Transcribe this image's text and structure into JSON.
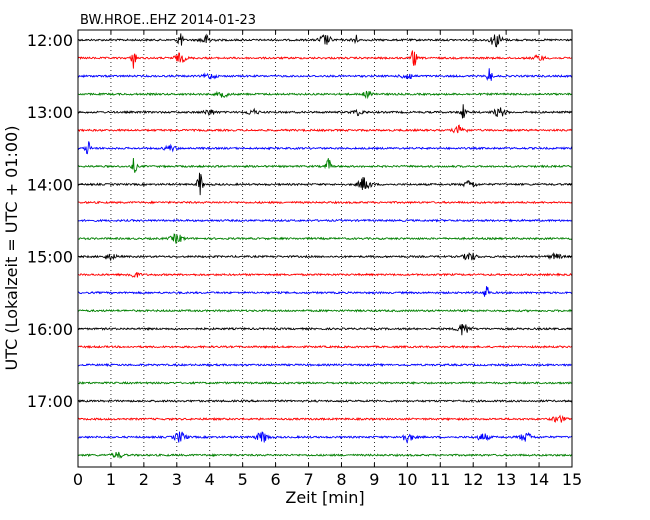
{
  "chart_data": {
    "type": "line",
    "title": "BW.HROE..EHZ 2014-01-23",
    "xlabel": "Zeit  [min]",
    "ylabel": "UTC (Lokalzeit = UTC + 01:00)",
    "xlim": [
      0,
      15
    ],
    "x_ticks": [
      "0",
      "1",
      "2",
      "3",
      "4",
      "5",
      "6",
      "7",
      "8",
      "9",
      "10",
      "11",
      "12",
      "13",
      "14",
      "15"
    ],
    "y_tick_labels": [
      "12:00",
      "13:00",
      "14:00",
      "15:00",
      "16:00",
      "17:00"
    ],
    "trace_interval_minutes": 15,
    "grid": "vertical-dotted",
    "trace_colors": [
      "#000000",
      "#ff0000",
      "#0000ff",
      "#008000"
    ],
    "traces": [
      {
        "start": "12:00",
        "events": [
          {
            "t": 3.1,
            "a": 1.0
          },
          {
            "t": 3.9,
            "a": 0.5
          },
          {
            "t": 7.5,
            "a": 0.6
          },
          {
            "t": 8.4,
            "a": 0.9
          },
          {
            "t": 12.7,
            "a": 0.8
          }
        ]
      },
      {
        "start": "12:15",
        "events": [
          {
            "t": 1.7,
            "a": 1.2
          },
          {
            "t": 3.1,
            "a": 0.5
          },
          {
            "t": 10.2,
            "a": 1.2
          },
          {
            "t": 14.0,
            "a": 0.3
          }
        ]
      },
      {
        "start": "12:30",
        "events": [
          {
            "t": 4.0,
            "a": 0.3
          },
          {
            "t": 10.0,
            "a": 0.4
          },
          {
            "t": 12.5,
            "a": 1.0
          }
        ]
      },
      {
        "start": "12:45",
        "events": [
          {
            "t": 4.4,
            "a": 0.3
          },
          {
            "t": 8.8,
            "a": 0.3
          }
        ]
      },
      {
        "start": "13:00",
        "events": [
          {
            "t": 4.0,
            "a": 0.3
          },
          {
            "t": 5.3,
            "a": 0.3
          },
          {
            "t": 8.5,
            "a": 0.3
          },
          {
            "t": 11.7,
            "a": 0.9
          },
          {
            "t": 12.8,
            "a": 0.5
          }
        ]
      },
      {
        "start": "13:15",
        "events": [
          {
            "t": 11.6,
            "a": 0.5
          }
        ]
      },
      {
        "start": "13:30",
        "events": [
          {
            "t": 0.3,
            "a": 0.9
          },
          {
            "t": 2.8,
            "a": 0.3
          }
        ]
      },
      {
        "start": "13:45",
        "events": [
          {
            "t": 1.7,
            "a": 0.9
          },
          {
            "t": 7.6,
            "a": 0.9
          }
        ]
      },
      {
        "start": "14:00",
        "events": [
          {
            "t": 3.7,
            "a": 1.6
          },
          {
            "t": 8.7,
            "a": 0.8
          },
          {
            "t": 11.9,
            "a": 0.4
          }
        ]
      },
      {
        "start": "14:15",
        "events": []
      },
      {
        "start": "14:30",
        "events": []
      },
      {
        "start": "14:45",
        "events": [
          {
            "t": 3.0,
            "a": 0.5
          }
        ]
      },
      {
        "start": "15:00",
        "events": [
          {
            "t": 1.0,
            "a": 0.3
          },
          {
            "t": 11.9,
            "a": 0.5
          },
          {
            "t": 14.5,
            "a": 0.3
          }
        ]
      },
      {
        "start": "15:15",
        "events": [
          {
            "t": 1.7,
            "a": 0.3
          }
        ]
      },
      {
        "start": "15:30",
        "events": [
          {
            "t": 12.4,
            "a": 1.0
          }
        ]
      },
      {
        "start": "15:45",
        "events": []
      },
      {
        "start": "16:00",
        "events": [
          {
            "t": 11.7,
            "a": 0.7
          }
        ]
      },
      {
        "start": "16:15",
        "events": []
      },
      {
        "start": "16:30",
        "events": []
      },
      {
        "start": "16:45",
        "events": []
      },
      {
        "start": "17:00",
        "events": []
      },
      {
        "start": "17:15",
        "events": [
          {
            "t": 14.6,
            "a": 0.4
          }
        ]
      },
      {
        "start": "17:30",
        "events": [
          {
            "t": 3.1,
            "a": 0.6
          },
          {
            "t": 5.6,
            "a": 0.6
          },
          {
            "t": 10.0,
            "a": 0.5
          },
          {
            "t": 12.3,
            "a": 0.4
          },
          {
            "t": 13.6,
            "a": 0.5
          }
        ]
      },
      {
        "start": "17:45",
        "events": [
          {
            "t": 1.2,
            "a": 0.3
          }
        ]
      }
    ]
  }
}
